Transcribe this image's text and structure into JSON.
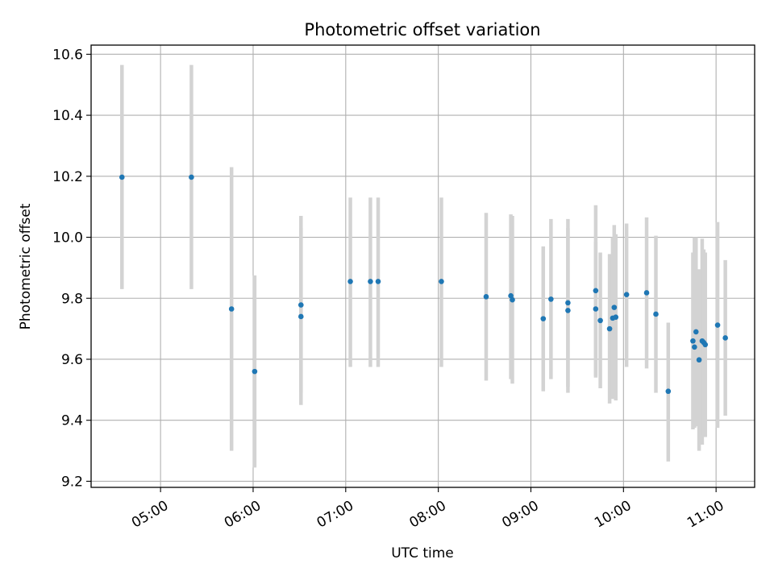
{
  "chart_data": {
    "type": "scatter",
    "title": "Photometric offset variation",
    "xlabel": "UTC time",
    "ylabel": "Photometric offset",
    "xlim": [
      "04:15",
      "11:25"
    ],
    "ylim": [
      9.18,
      10.63
    ],
    "xticks": [
      "05:00",
      "06:00",
      "07:00",
      "08:00",
      "09:00",
      "10:00",
      "11:00"
    ],
    "yticks": [
      "9.2",
      "9.4",
      "9.6",
      "9.8",
      "10.0",
      "10.2",
      "10.4",
      "10.6"
    ],
    "grid": true,
    "colors": {
      "points": "#1f77b4",
      "errorbars": "#d3d3d3",
      "grid": "#b0b0b0"
    },
    "points": [
      {
        "t": "04:35",
        "y": 10.197,
        "lo": 9.83,
        "hi": 10.565
      },
      {
        "t": "05:20",
        "y": 10.197,
        "lo": 9.83,
        "hi": 10.565
      },
      {
        "t": "05:46",
        "y": 9.765,
        "lo": 9.3,
        "hi": 10.23
      },
      {
        "t": "06:01",
        "y": 9.56,
        "lo": 9.245,
        "hi": 9.875
      },
      {
        "t": "06:31",
        "y": 9.778,
        "lo": 9.49,
        "hi": 10.07
      },
      {
        "t": "06:31",
        "y": 9.74,
        "lo": 9.45,
        "hi": 10.03
      },
      {
        "t": "07:03",
        "y": 9.855,
        "lo": 9.575,
        "hi": 10.13
      },
      {
        "t": "07:16",
        "y": 9.855,
        "lo": 9.575,
        "hi": 10.13
      },
      {
        "t": "07:21",
        "y": 9.855,
        "lo": 9.575,
        "hi": 10.13
      },
      {
        "t": "08:02",
        "y": 9.855,
        "lo": 9.575,
        "hi": 10.13
      },
      {
        "t": "08:31",
        "y": 9.805,
        "lo": 9.53,
        "hi": 10.08
      },
      {
        "t": "08:47",
        "y": 9.808,
        "lo": 9.535,
        "hi": 10.075
      },
      {
        "t": "08:48",
        "y": 9.795,
        "lo": 9.52,
        "hi": 10.07
      },
      {
        "t": "09:08",
        "y": 9.733,
        "lo": 9.495,
        "hi": 9.97
      },
      {
        "t": "09:13",
        "y": 9.797,
        "lo": 9.535,
        "hi": 10.06
      },
      {
        "t": "09:24",
        "y": 9.785,
        "lo": 9.51,
        "hi": 10.06
      },
      {
        "t": "09:24",
        "y": 9.76,
        "lo": 9.49,
        "hi": 10.03
      },
      {
        "t": "09:42",
        "y": 9.825,
        "lo": 9.545,
        "hi": 10.105
      },
      {
        "t": "09:42",
        "y": 9.765,
        "lo": 9.54,
        "hi": 9.985
      },
      {
        "t": "09:45",
        "y": 9.727,
        "lo": 9.505,
        "hi": 9.95
      },
      {
        "t": "09:51",
        "y": 9.7,
        "lo": 9.455,
        "hi": 9.945
      },
      {
        "t": "09:53",
        "y": 9.735,
        "lo": 9.47,
        "hi": 10.0
      },
      {
        "t": "09:54",
        "y": 9.77,
        "lo": 9.5,
        "hi": 10.04
      },
      {
        "t": "09:55",
        "y": 9.738,
        "lo": 9.465,
        "hi": 10.01
      },
      {
        "t": "10:02",
        "y": 9.812,
        "lo": 9.575,
        "hi": 10.045
      },
      {
        "t": "10:15",
        "y": 9.818,
        "lo": 9.57,
        "hi": 10.065
      },
      {
        "t": "10:21",
        "y": 9.748,
        "lo": 9.49,
        "hi": 10.005
      },
      {
        "t": "10:29",
        "y": 9.495,
        "lo": 9.265,
        "hi": 9.72
      },
      {
        "t": "10:45",
        "y": 9.66,
        "lo": 9.37,
        "hi": 9.95
      },
      {
        "t": "10:46",
        "y": 9.64,
        "lo": 9.375,
        "hi": 10.0
      },
      {
        "t": "10:47",
        "y": 9.69,
        "lo": 9.38,
        "hi": 10.0
      },
      {
        "t": "10:49",
        "y": 9.598,
        "lo": 9.3,
        "hi": 9.895
      },
      {
        "t": "10:51",
        "y": 9.66,
        "lo": 9.32,
        "hi": 9.995
      },
      {
        "t": "10:52",
        "y": 9.655,
        "lo": 9.35,
        "hi": 9.96
      },
      {
        "t": "10:53",
        "y": 9.648,
        "lo": 9.345,
        "hi": 9.95
      },
      {
        "t": "11:01",
        "y": 9.712,
        "lo": 9.375,
        "hi": 10.05
      },
      {
        "t": "11:06",
        "y": 9.67,
        "lo": 9.415,
        "hi": 9.925
      }
    ]
  }
}
